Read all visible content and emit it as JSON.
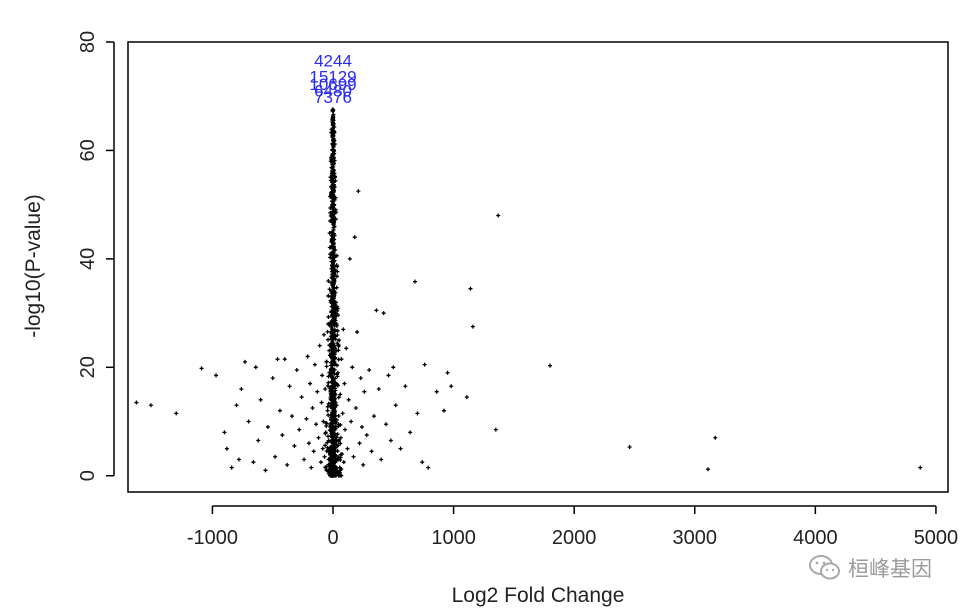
{
  "chart_data": {
    "type": "scatter",
    "title": "",
    "xlabel": "Log2 Fold Change",
    "ylabel": "-log10(P-value)",
    "xlim": [
      -1700,
      5100
    ],
    "ylim": [
      -3,
      80
    ],
    "x_ticks": [
      -1000,
      0,
      1000,
      2000,
      3000,
      4000,
      5000
    ],
    "y_ticks": [
      0,
      20,
      40,
      60,
      80
    ],
    "x_tick_labels": [
      "-1000",
      "0",
      "1000",
      "2000",
      "3000",
      "4000",
      "5000"
    ],
    "y_tick_labels": [
      "0",
      "20",
      "40",
      "60",
      "80"
    ],
    "grid": false,
    "legend": "none",
    "point_color": "#000000",
    "label_color": "#2b2bf0",
    "points": [
      {
        "x": -1630,
        "y": 13.5
      },
      {
        "x": -1510,
        "y": 13.0
      },
      {
        "x": -1300,
        "y": 11.5
      },
      {
        "x": -1090,
        "y": 19.8
      },
      {
        "x": -970,
        "y": 18.5
      },
      {
        "x": -900,
        "y": 8.0
      },
      {
        "x": -880,
        "y": 5.0
      },
      {
        "x": -840,
        "y": 1.5
      },
      {
        "x": -800,
        "y": 13.0
      },
      {
        "x": -780,
        "y": 3.0
      },
      {
        "x": -760,
        "y": 16.0
      },
      {
        "x": -730,
        "y": 21.0
      },
      {
        "x": -700,
        "y": 10.0
      },
      {
        "x": -660,
        "y": 2.5
      },
      {
        "x": -640,
        "y": 20.0
      },
      {
        "x": -620,
        "y": 6.5
      },
      {
        "x": -600,
        "y": 14.0
      },
      {
        "x": -560,
        "y": 1.0
      },
      {
        "x": -540,
        "y": 9.0
      },
      {
        "x": -500,
        "y": 18.0
      },
      {
        "x": -480,
        "y": 3.5
      },
      {
        "x": -460,
        "y": 21.5
      },
      {
        "x": -440,
        "y": 12.0
      },
      {
        "x": -420,
        "y": 7.5
      },
      {
        "x": -400,
        "y": 21.5
      },
      {
        "x": -380,
        "y": 2.0
      },
      {
        "x": -360,
        "y": 16.5
      },
      {
        "x": -340,
        "y": 11.0
      },
      {
        "x": -320,
        "y": 5.5
      },
      {
        "x": -300,
        "y": 19.5
      },
      {
        "x": -280,
        "y": 8.5
      },
      {
        "x": -260,
        "y": 14.5
      },
      {
        "x": -240,
        "y": 3.0
      },
      {
        "x": -220,
        "y": 10.5
      },
      {
        "x": -210,
        "y": 22.0
      },
      {
        "x": -200,
        "y": 6.0
      },
      {
        "x": -190,
        "y": 17.0
      },
      {
        "x": -180,
        "y": 1.5
      },
      {
        "x": -170,
        "y": 12.5
      },
      {
        "x": -160,
        "y": 4.5
      },
      {
        "x": -150,
        "y": 20.5
      },
      {
        "x": -140,
        "y": 9.5
      },
      {
        "x": -130,
        "y": 15.5
      },
      {
        "x": -120,
        "y": 7.0
      },
      {
        "x": -110,
        "y": 24.0
      },
      {
        "x": -100,
        "y": 2.5
      },
      {
        "x": -95,
        "y": 13.5
      },
      {
        "x": -90,
        "y": 18.5
      },
      {
        "x": -85,
        "y": 5.0
      },
      {
        "x": -80,
        "y": 10.0
      },
      {
        "x": -75,
        "y": 26.0
      },
      {
        "x": -70,
        "y": 3.5
      },
      {
        "x": -65,
        "y": 16.0
      },
      {
        "x": -60,
        "y": 8.0
      },
      {
        "x": -55,
        "y": 21.0
      },
      {
        "x": -50,
        "y": 1.0
      },
      {
        "x": -45,
        "y": 12.0
      },
      {
        "x": -40,
        "y": 28.0
      },
      {
        "x": -35,
        "y": 6.5
      },
      {
        "x": -30,
        "y": 19.0
      },
      {
        "x": -25,
        "y": 4.0
      },
      {
        "x": -20,
        "y": 14.5
      },
      {
        "x": -15,
        "y": 33.0
      },
      {
        "x": -10,
        "y": 9.0
      },
      {
        "x": -5,
        "y": 45.0
      },
      {
        "x": 0,
        "y": 55.0
      },
      {
        "x": 0,
        "y": 2.0
      },
      {
        "x": 5,
        "y": 62.0
      },
      {
        "x": 5,
        "y": 17.5
      },
      {
        "x": 10,
        "y": 50.0
      },
      {
        "x": 10,
        "y": 7.5
      },
      {
        "x": 15,
        "y": 38.0
      },
      {
        "x": 15,
        "y": 11.0
      },
      {
        "x": 20,
        "y": 30.0
      },
      {
        "x": 20,
        "y": 3.0
      },
      {
        "x": 25,
        "y": 23.0
      },
      {
        "x": 30,
        "y": 13.0
      },
      {
        "x": 35,
        "y": 5.5
      },
      {
        "x": 40,
        "y": 19.0
      },
      {
        "x": 45,
        "y": 9.5
      },
      {
        "x": 50,
        "y": 25.0
      },
      {
        "x": 55,
        "y": 1.5
      },
      {
        "x": 60,
        "y": 15.0
      },
      {
        "x": 65,
        "y": 7.0
      },
      {
        "x": 70,
        "y": 21.5
      },
      {
        "x": 75,
        "y": 4.0
      },
      {
        "x": 80,
        "y": 11.5
      },
      {
        "x": 85,
        "y": 27.0
      },
      {
        "x": 90,
        "y": 2.5
      },
      {
        "x": 95,
        "y": 17.0
      },
      {
        "x": 100,
        "y": 8.5
      },
      {
        "x": 110,
        "y": 23.5
      },
      {
        "x": 120,
        "y": 5.0
      },
      {
        "x": 130,
        "y": 14.0
      },
      {
        "x": 140,
        "y": 40.0
      },
      {
        "x": 150,
        "y": 10.0
      },
      {
        "x": 160,
        "y": 20.0
      },
      {
        "x": 170,
        "y": 3.5
      },
      {
        "x": 180,
        "y": 44.0
      },
      {
        "x": 190,
        "y": 12.5
      },
      {
        "x": 200,
        "y": 26.5
      },
      {
        "x": 210,
        "y": 52.5
      },
      {
        "x": 220,
        "y": 6.0
      },
      {
        "x": 230,
        "y": 18.0
      },
      {
        "x": 240,
        "y": 9.0
      },
      {
        "x": 250,
        "y": 2.0
      },
      {
        "x": 260,
        "y": 15.5
      },
      {
        "x": 280,
        "y": 7.5
      },
      {
        "x": 300,
        "y": 19.5
      },
      {
        "x": 320,
        "y": 4.5
      },
      {
        "x": 340,
        "y": 11.0
      },
      {
        "x": 360,
        "y": 30.5
      },
      {
        "x": 380,
        "y": 16.0
      },
      {
        "x": 400,
        "y": 3.0
      },
      {
        "x": 420,
        "y": 30.0
      },
      {
        "x": 440,
        "y": 9.5
      },
      {
        "x": 460,
        "y": 18.5
      },
      {
        "x": 480,
        "y": 6.5
      },
      {
        "x": 500,
        "y": 20.0
      },
      {
        "x": 520,
        "y": 13.0
      },
      {
        "x": 560,
        "y": 5.0
      },
      {
        "x": 600,
        "y": 16.5
      },
      {
        "x": 640,
        "y": 8.0
      },
      {
        "x": 680,
        "y": 35.8
      },
      {
        "x": 700,
        "y": 11.5
      },
      {
        "x": 740,
        "y": 2.5
      },
      {
        "x": 760,
        "y": 20.5
      },
      {
        "x": 790,
        "y": 1.5
      },
      {
        "x": 860,
        "y": 15.5
      },
      {
        "x": 920,
        "y": 12.0
      },
      {
        "x": 950,
        "y": 19.0
      },
      {
        "x": 980,
        "y": 16.5
      },
      {
        "x": 1110,
        "y": 14.5
      },
      {
        "x": 1140,
        "y": 34.5
      },
      {
        "x": 1160,
        "y": 27.5
      },
      {
        "x": 1350,
        "y": 8.5
      },
      {
        "x": 1370,
        "y": 48.0
      },
      {
        "x": 1800,
        "y": 20.3
      },
      {
        "x": 2460,
        "y": 5.3
      },
      {
        "x": 3110,
        "y": 1.2
      },
      {
        "x": 3170,
        "y": 7.0
      },
      {
        "x": 4870,
        "y": 1.5
      }
    ],
    "labels": [
      {
        "text": "4244",
        "x": 0,
        "y": 76.5
      },
      {
        "text": "15129",
        "x": 0,
        "y": 73.5
      },
      {
        "text": "10699",
        "x": 0,
        "y": 72.2
      },
      {
        "text": "6480",
        "x": 0,
        "y": 71.0
      },
      {
        "text": "7376",
        "x": 0,
        "y": 69.8
      }
    ]
  },
  "watermark": {
    "text": "桓峰基因",
    "icon": "wechat-icon"
  }
}
